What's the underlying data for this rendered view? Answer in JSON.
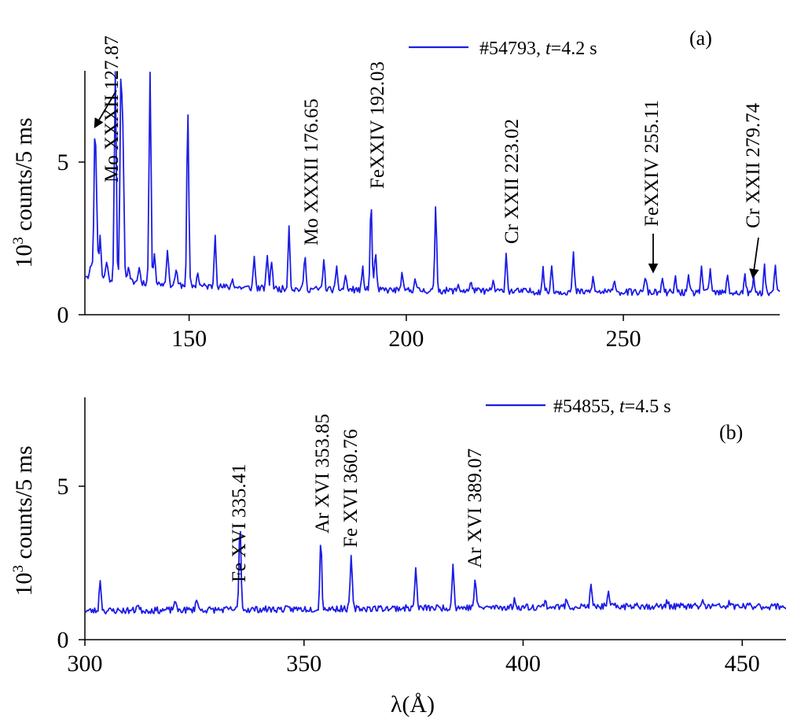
{
  "chart_data": [
    {
      "panel": "(a)",
      "type": "line",
      "ylabel": "10^3 counts/5 ms",
      "xlim": [
        126,
        286
      ],
      "ylim": [
        0,
        8
      ],
      "xticks": [
        150,
        200,
        250
      ],
      "yticks": [
        0,
        5
      ],
      "legend": {
        "position": "top-center",
        "label": "#54793, t=4.2 s"
      },
      "series": [
        {
          "name": "#54793, t=4.2 s",
          "color": "#1c1ce6",
          "baseline": [
            [
              126,
              1.3
            ],
            [
              135,
              1.1
            ],
            [
              150,
              0.95
            ],
            [
              170,
              0.85
            ],
            [
              200,
              0.8
            ],
            [
              240,
              0.75
            ],
            [
              286,
              0.7
            ]
          ],
          "peaks": [
            [
              127.5,
              1.7
            ],
            [
              128.3,
              5.7
            ],
            [
              128.7,
              3.2
            ],
            [
              129.5,
              2.6
            ],
            [
              131,
              1.8
            ],
            [
              133,
              8.0
            ],
            [
              134.3,
              7.8
            ],
            [
              134.8,
              5.5
            ],
            [
              136,
              1.6
            ],
            [
              138.5,
              1.6
            ],
            [
              141,
              8.0
            ],
            [
              142,
              2.1
            ],
            [
              145,
              2.2
            ],
            [
              147,
              1.5
            ],
            [
              149.7,
              6.7
            ],
            [
              152,
              1.4
            ],
            [
              156,
              2.7
            ],
            [
              160,
              1.2
            ],
            [
              165,
              1.9
            ],
            [
              168,
              2.0
            ],
            [
              169,
              1.8
            ],
            [
              173,
              2.9
            ],
            [
              176.65,
              1.95
            ],
            [
              181,
              1.8
            ],
            [
              184,
              1.5
            ],
            [
              186,
              1.3
            ],
            [
              190,
              1.5
            ],
            [
              191.9,
              3.7
            ],
            [
              192.9,
              2.1
            ],
            [
              199,
              1.3
            ],
            [
              202,
              1.2
            ],
            [
              206.8,
              3.5
            ],
            [
              212,
              1.0
            ],
            [
              215,
              1.1
            ],
            [
              220,
              1.1
            ],
            [
              223.02,
              2.0
            ],
            [
              231.5,
              1.5
            ],
            [
              233.5,
              1.6
            ],
            [
              238.5,
              2.0
            ],
            [
              243,
              1.2
            ],
            [
              248,
              1.2
            ],
            [
              255.11,
              1.3
            ],
            [
              259,
              1.1
            ],
            [
              262,
              1.2
            ],
            [
              265,
              1.2
            ],
            [
              268,
              1.6
            ],
            [
              270,
              1.5
            ],
            [
              274,
              1.3
            ],
            [
              278,
              1.3
            ],
            [
              280,
              1.2
            ],
            [
              282.5,
              1.6
            ],
            [
              285,
              1.6
            ]
          ],
          "seed": 11
        }
      ],
      "annotations": [
        {
          "text": "Mo XXXII 127.87",
          "x": 127.87
        },
        {
          "text": "Mo XXXII 176.65",
          "x": 176.65
        },
        {
          "text": "FeXXIV   192.03",
          "x": 192.03
        },
        {
          "text": "Cr XXII 223.02",
          "x": 223.02
        },
        {
          "text": "FeXXIV   255.11",
          "x": 255.11
        },
        {
          "text": "Cr XXII 279.74",
          "x": 279.74
        }
      ]
    },
    {
      "panel": "(b)",
      "type": "line",
      "ylabel": "10^3 counts/5 ms",
      "xlabel": "λ(Å)",
      "xlim": [
        300,
        460
      ],
      "ylim": [
        0,
        8
      ],
      "xticks": [
        300,
        350,
        400,
        450
      ],
      "yticks": [
        0,
        5
      ],
      "legend": {
        "position": "top-center",
        "label": "#54855, t=4.5 s"
      },
      "series": [
        {
          "name": "#54855, t=4.5 s",
          "color": "#1c1ce6",
          "baseline": [
            [
              300,
              0.95
            ],
            [
              340,
              1.0
            ],
            [
              380,
              1.05
            ],
            [
              420,
              1.1
            ],
            [
              460,
              1.1
            ]
          ],
          "peaks": [
            [
              303.5,
              2.0
            ],
            [
              312,
              1.2
            ],
            [
              320.5,
              1.3
            ],
            [
              325.5,
              1.4
            ],
            [
              335.41,
              3.9
            ],
            [
              353.85,
              3.3
            ],
            [
              360.76,
              2.8
            ],
            [
              375.5,
              2.4
            ],
            [
              384,
              2.5
            ],
            [
              389.07,
              2.05
            ],
            [
              398,
              1.3
            ],
            [
              405,
              1.3
            ],
            [
              410,
              1.35
            ],
            [
              415.5,
              1.75
            ],
            [
              419.5,
              1.5
            ],
            [
              426,
              1.3
            ],
            [
              433,
              1.3
            ],
            [
              441,
              1.25
            ],
            [
              447,
              1.2
            ]
          ],
          "seed": 23
        }
      ],
      "annotations": [
        {
          "text": "Fe XVI 335.41",
          "x": 335.41
        },
        {
          "text": "Ar XVI 353.85",
          "x": 353.85
        },
        {
          "text": "Fe XVI 360.76",
          "x": 360.76
        },
        {
          "text": "Ar XVI  389.07",
          "x": 389.07
        }
      ]
    }
  ],
  "panel_a": {
    "label": "(a)",
    "legend_prefix": "#54793, ",
    "legend_t": "t",
    "legend_suffix": "=4.2 s",
    "ylabel_base": "10",
    "ylabel_exp": "3",
    "ylabel_rest": " counts/5 ms",
    "ann1": "Mo XXXII 127.87",
    "ann2": "Mo XXXII 176.65",
    "ann3": "FeXXIV   192.03",
    "ann4": "Cr XXII 223.02",
    "ann5": "FeXXIV   255.11",
    "ann6": "Cr XXII 279.74",
    "tick_x1": "150",
    "tick_x2": "200",
    "tick_x3": "250",
    "tick_y0": "0",
    "tick_y5": "5"
  },
  "panel_b": {
    "label": "(b)",
    "legend_prefix": "#54855, ",
    "legend_t": "t",
    "legend_suffix": "=4.5 s",
    "ylabel_base": "10",
    "ylabel_exp": "3",
    "ylabel_rest": " counts/5 ms",
    "xlabel": "λ(Å)",
    "ann1": "Fe XVI 335.41",
    "ann2": "Ar XVI 353.85",
    "ann3": "Fe XVI 360.76",
    "ann4": "Ar XVI  389.07",
    "tick_x0": "300",
    "tick_x1": "350",
    "tick_x2": "400",
    "tick_x3": "450",
    "tick_y0": "0",
    "tick_y5": "5"
  }
}
